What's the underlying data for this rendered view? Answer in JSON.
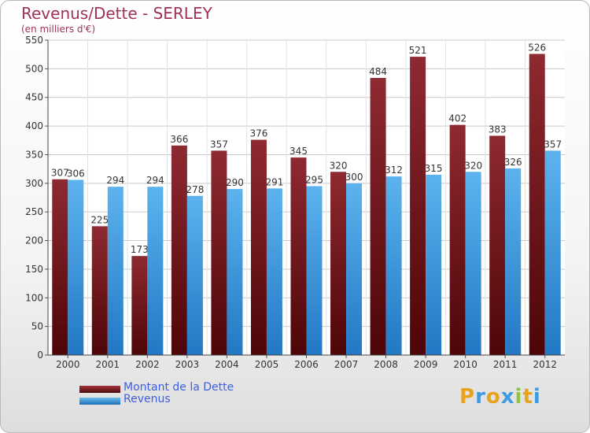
{
  "chart_data": {
    "type": "bar",
    "title": "Revenus/Dette - SERLEY",
    "subtitle": "(en milliers d'€)",
    "categories": [
      "2000",
      "2001",
      "2002",
      "2003",
      "2004",
      "2005",
      "2006",
      "2007",
      "2008",
      "2009",
      "2010",
      "2011",
      "2012"
    ],
    "series": [
      {
        "name": "Montant de la Dette",
        "color": "#7a1a1e",
        "values": [
          307,
          225,
          173,
          366,
          357,
          376,
          345,
          320,
          484,
          521,
          402,
          383,
          526
        ]
      },
      {
        "name": "Revenus",
        "color": "#3f9be0",
        "values": [
          306,
          294,
          294,
          278,
          290,
          291,
          295,
          300,
          312,
          315,
          320,
          326,
          357
        ]
      }
    ],
    "ylim": [
      0,
      550
    ],
    "yticks": [
      0,
      50,
      100,
      150,
      200,
      250,
      300,
      350,
      400,
      450,
      500,
      550
    ],
    "grid": true,
    "legend_position": "bottom-left"
  },
  "logo": {
    "text": [
      "P",
      "r",
      "o",
      "x",
      "i",
      "t",
      "i"
    ],
    "colors": [
      "#e8a31d",
      "#3f9be0",
      "#e8a31d",
      "#3f9be0",
      "#8cc63f",
      "#e8a31d",
      "#3f9be0"
    ]
  }
}
